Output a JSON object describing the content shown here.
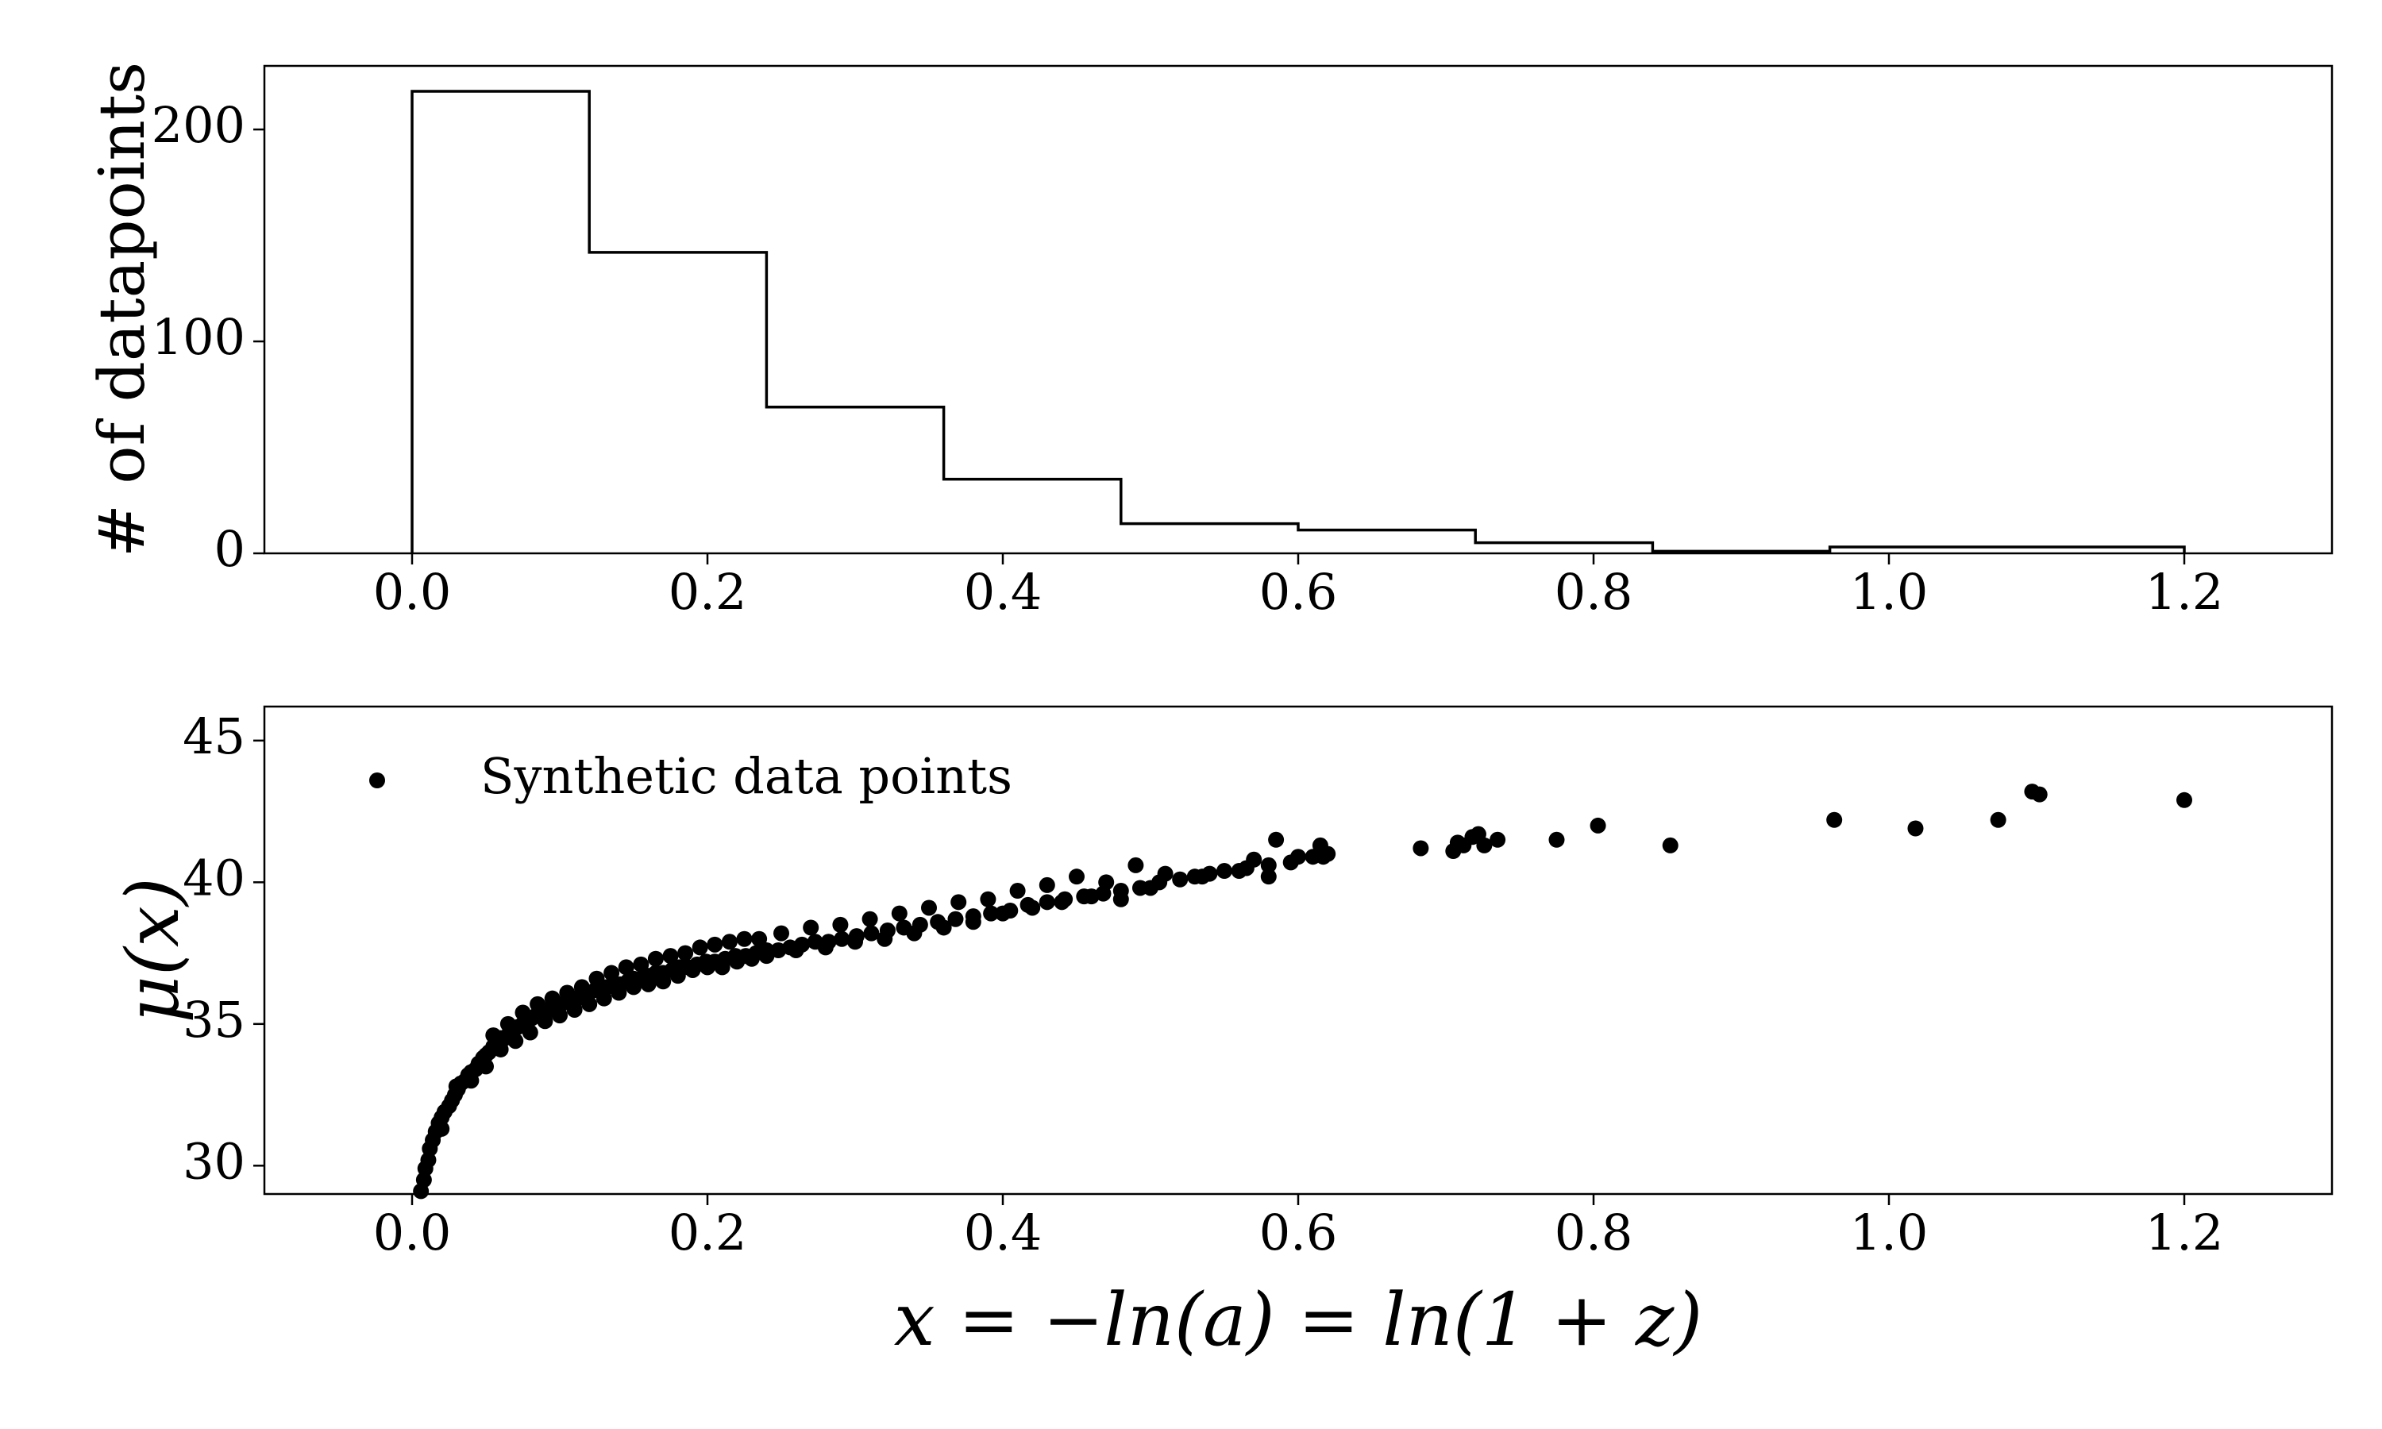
{
  "chart_data": [
    {
      "type": "histogram",
      "xlabel": "",
      "ylabel": "# of datapoints",
      "xlim": [
        -0.1,
        1.3
      ],
      "ylim": [
        0,
        230
      ],
      "xticks": [
        0.0,
        0.2,
        0.4,
        0.6,
        0.8,
        1.0,
        1.2
      ],
      "xtick_labels": [
        "0.0",
        "0.2",
        "0.4",
        "0.6",
        "0.8",
        "1.0",
        "1.2"
      ],
      "yticks": [
        0,
        100,
        200
      ],
      "ytick_labels": [
        "0",
        "100",
        "200"
      ],
      "bin_edges": [
        0.0,
        0.12,
        0.24,
        0.36,
        0.48,
        0.6,
        0.72,
        0.84,
        0.96,
        1.2
      ],
      "counts": [
        218,
        142,
        69,
        35,
        14,
        11,
        5,
        1,
        3
      ],
      "grid": false
    },
    {
      "type": "scatter",
      "xlabel": "x = −ln(a) = ln(1 + z)",
      "ylabel": "μ(x)",
      "xlim": [
        -0.1,
        1.3
      ],
      "ylim": [
        29,
        46.2
      ],
      "xticks": [
        0.0,
        0.2,
        0.4,
        0.6,
        0.8,
        1.0,
        1.2
      ],
      "xtick_labels": [
        "0.0",
        "0.2",
        "0.4",
        "0.6",
        "0.8",
        "1.0",
        "1.2"
      ],
      "yticks": [
        30,
        35,
        40,
        45
      ],
      "ytick_labels": [
        "30",
        "35",
        "40",
        "45"
      ],
      "legend": {
        "position": "upper-left",
        "entries": [
          "Synthetic data points"
        ]
      },
      "grid": false,
      "series": [
        {
          "name": "Synthetic data points",
          "points": [
            [
              0.006,
              29.1
            ],
            [
              0.008,
              29.5
            ],
            [
              0.009,
              29.9
            ],
            [
              0.011,
              30.2
            ],
            [
              0.012,
              30.6
            ],
            [
              0.014,
              30.9
            ],
            [
              0.016,
              31.2
            ],
            [
              0.018,
              31.5
            ],
            [
              0.02,
              31.7
            ],
            [
              0.022,
              31.9
            ],
            [
              0.025,
              32.1
            ],
            [
              0.027,
              32.3
            ],
            [
              0.029,
              32.5
            ],
            [
              0.031,
              32.7
            ],
            [
              0.033,
              32.9
            ],
            [
              0.036,
              33.0
            ],
            [
              0.038,
              33.2
            ],
            [
              0.04,
              33.3
            ],
            [
              0.043,
              33.4
            ],
            [
              0.045,
              33.6
            ],
            [
              0.048,
              33.8
            ],
            [
              0.05,
              33.9
            ],
            [
              0.052,
              34.0
            ],
            [
              0.055,
              34.2
            ],
            [
              0.058,
              34.3
            ],
            [
              0.06,
              34.5
            ],
            [
              0.063,
              34.5
            ],
            [
              0.066,
              34.7
            ],
            [
              0.069,
              34.8
            ],
            [
              0.072,
              34.9
            ],
            [
              0.075,
              35.0
            ],
            [
              0.078,
              35.1
            ],
            [
              0.081,
              35.2
            ],
            [
              0.084,
              35.3
            ],
            [
              0.088,
              35.4
            ],
            [
              0.091,
              35.5
            ],
            [
              0.094,
              35.5
            ],
            [
              0.098,
              35.6
            ],
            [
              0.101,
              35.7
            ],
            [
              0.105,
              35.8
            ],
            [
              0.109,
              35.9
            ],
            [
              0.112,
              35.9
            ],
            [
              0.116,
              36.0
            ],
            [
              0.12,
              36.1
            ],
            [
              0.124,
              36.2
            ],
            [
              0.128,
              36.2
            ],
            [
              0.132,
              36.3
            ],
            [
              0.137,
              36.4
            ],
            [
              0.141,
              36.4
            ],
            [
              0.146,
              36.5
            ],
            [
              0.15,
              36.6
            ],
            [
              0.155,
              36.6
            ],
            [
              0.16,
              36.7
            ],
            [
              0.165,
              36.8
            ],
            [
              0.17,
              36.8
            ],
            [
              0.176,
              36.9
            ],
            [
              0.181,
              37.0
            ],
            [
              0.187,
              37.0
            ],
            [
              0.193,
              37.1
            ],
            [
              0.199,
              37.2
            ],
            [
              0.205,
              37.2
            ],
            [
              0.212,
              37.3
            ],
            [
              0.219,
              37.4
            ],
            [
              0.226,
              37.4
            ],
            [
              0.233,
              37.5
            ],
            [
              0.24,
              37.6
            ],
            [
              0.248,
              37.6
            ],
            [
              0.256,
              37.7
            ],
            [
              0.264,
              37.8
            ],
            [
              0.273,
              37.9
            ],
            [
              0.282,
              37.9
            ],
            [
              0.291,
              38.0
            ],
            [
              0.301,
              38.1
            ],
            [
              0.311,
              38.2
            ],
            [
              0.322,
              38.3
            ],
            [
              0.333,
              38.4
            ],
            [
              0.344,
              38.5
            ],
            [
              0.356,
              38.6
            ],
            [
              0.368,
              38.7
            ],
            [
              0.38,
              38.8
            ],
            [
              0.392,
              38.9
            ],
            [
              0.405,
              39.0
            ],
            [
              0.417,
              39.2
            ],
            [
              0.43,
              39.3
            ],
            [
              0.442,
              39.4
            ],
            [
              0.455,
              39.5
            ],
            [
              0.468,
              39.6
            ],
            [
              0.48,
              39.7
            ],
            [
              0.493,
              39.8
            ],
            [
              0.506,
              40.0
            ],
            [
              0.52,
              40.1
            ],
            [
              0.535,
              40.2
            ],
            [
              0.55,
              40.4
            ],
            [
              0.565,
              40.5
            ],
            [
              0.58,
              40.6
            ],
            [
              0.595,
              40.7
            ],
            [
              0.61,
              40.9
            ],
            [
              0.62,
              41.0
            ],
            [
              0.02,
              31.3
            ],
            [
              0.03,
              32.8
            ],
            [
              0.04,
              33.0
            ],
            [
              0.05,
              33.5
            ],
            [
              0.055,
              34.6
            ],
            [
              0.06,
              34.1
            ],
            [
              0.065,
              35.0
            ],
            [
              0.07,
              34.4
            ],
            [
              0.075,
              35.4
            ],
            [
              0.08,
              34.7
            ],
            [
              0.085,
              35.7
            ],
            [
              0.09,
              35.1
            ],
            [
              0.095,
              35.9
            ],
            [
              0.1,
              35.3
            ],
            [
              0.105,
              36.1
            ],
            [
              0.11,
              35.5
            ],
            [
              0.115,
              36.3
            ],
            [
              0.12,
              35.7
            ],
            [
              0.125,
              36.6
            ],
            [
              0.13,
              35.9
            ],
            [
              0.135,
              36.8
            ],
            [
              0.14,
              36.1
            ],
            [
              0.145,
              37.0
            ],
            [
              0.15,
              36.3
            ],
            [
              0.155,
              37.1
            ],
            [
              0.16,
              36.4
            ],
            [
              0.165,
              37.3
            ],
            [
              0.17,
              36.5
            ],
            [
              0.175,
              37.4
            ],
            [
              0.18,
              36.7
            ],
            [
              0.185,
              37.5
            ],
            [
              0.19,
              36.9
            ],
            [
              0.195,
              37.7
            ],
            [
              0.2,
              37.0
            ],
            [
              0.205,
              37.8
            ],
            [
              0.21,
              37.0
            ],
            [
              0.215,
              37.9
            ],
            [
              0.22,
              37.2
            ],
            [
              0.225,
              38.0
            ],
            [
              0.23,
              37.3
            ],
            [
              0.235,
              38.0
            ],
            [
              0.24,
              37.4
            ],
            [
              0.25,
              38.2
            ],
            [
              0.26,
              37.6
            ],
            [
              0.27,
              38.4
            ],
            [
              0.28,
              37.7
            ],
            [
              0.29,
              38.5
            ],
            [
              0.3,
              37.9
            ],
            [
              0.31,
              38.7
            ],
            [
              0.32,
              38.0
            ],
            [
              0.33,
              38.9
            ],
            [
              0.34,
              38.2
            ],
            [
              0.35,
              39.1
            ],
            [
              0.36,
              38.4
            ],
            [
              0.37,
              39.3
            ],
            [
              0.38,
              38.6
            ],
            [
              0.39,
              39.4
            ],
            [
              0.4,
              38.9
            ],
            [
              0.41,
              39.7
            ],
            [
              0.42,
              39.1
            ],
            [
              0.43,
              39.9
            ],
            [
              0.44,
              39.3
            ],
            [
              0.45,
              40.2
            ],
            [
              0.46,
              39.5
            ],
            [
              0.47,
              40.0
            ],
            [
              0.48,
              39.4
            ],
            [
              0.49,
              40.6
            ],
            [
              0.5,
              39.8
            ],
            [
              0.51,
              40.3
            ],
            [
              0.53,
              40.2
            ],
            [
              0.54,
              40.3
            ],
            [
              0.56,
              40.4
            ],
            [
              0.57,
              40.8
            ],
            [
              0.58,
              40.2
            ],
            [
              0.585,
              41.5
            ],
            [
              0.6,
              40.9
            ],
            [
              0.615,
              41.3
            ],
            [
              0.617,
              40.9
            ],
            [
              0.683,
              41.2
            ],
            [
              0.705,
              41.1
            ],
            [
              0.708,
              41.4
            ],
            [
              0.712,
              41.3
            ],
            [
              0.718,
              41.6
            ],
            [
              0.722,
              41.7
            ],
            [
              0.726,
              41.3
            ],
            [
              0.735,
              41.5
            ],
            [
              0.775,
              41.5
            ],
            [
              0.803,
              42.0
            ],
            [
              0.852,
              41.3
            ],
            [
              0.963,
              42.2
            ],
            [
              1.018,
              41.9
            ],
            [
              1.074,
              42.2
            ],
            [
              1.097,
              43.2
            ],
            [
              1.102,
              43.1
            ],
            [
              1.2,
              42.9
            ]
          ]
        }
      ]
    }
  ]
}
